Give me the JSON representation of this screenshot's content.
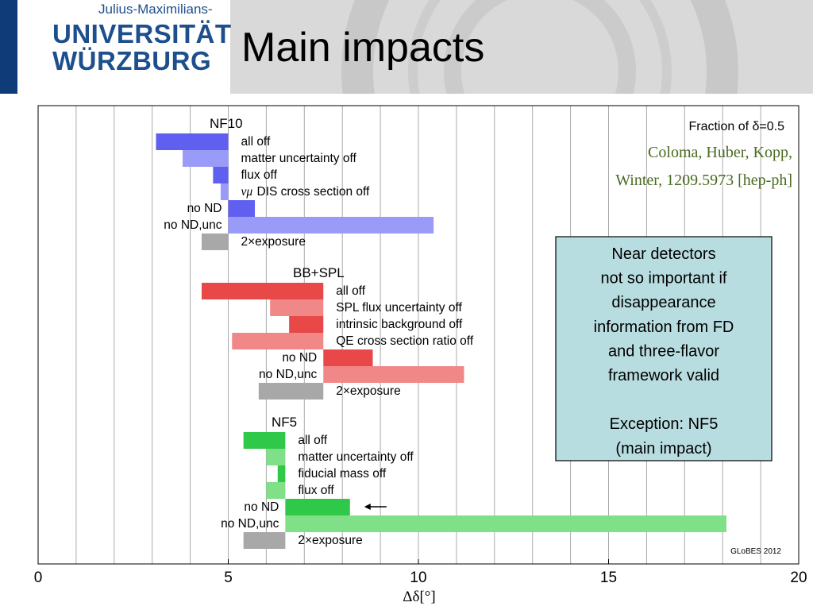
{
  "header": {
    "logo_top": "Julius-Maximilians-",
    "logo_line1": "UNIVERSITÄT",
    "logo_line2": "WÜRZBURG",
    "title": "Main impacts",
    "colors": {
      "brand": "#1d4f8c",
      "header_bg": "#d9d9d9"
    }
  },
  "chart_data": {
    "type": "bar",
    "orientation": "horizontal-range",
    "xlabel": "Δδ[°]",
    "xlim": [
      0,
      20
    ],
    "x_ticks": [
      "0",
      "5",
      "10",
      "15",
      "20"
    ],
    "grid": "vertical, every 1 unit",
    "top_right_label": "Fraction of δ=0.5",
    "citation": [
      "Coloma, Huber, Kopp,",
      "Winter, 1209.5973 [hep-ph]"
    ],
    "watermark": "GLoBES 2012",
    "groups": [
      {
        "name": "NF10",
        "color_dark": "#6060f0",
        "color_light": "#9a9af8",
        "bars": [
          {
            "label": "all off",
            "start": 3.1,
            "end": 5.0,
            "shade": "dark",
            "label_side": "right"
          },
          {
            "label": "matter uncertainty off",
            "start": 3.8,
            "end": 5.0,
            "shade": "light",
            "label_side": "right"
          },
          {
            "label": "flux off",
            "start": 4.6,
            "end": 5.0,
            "shade": "dark",
            "label_side": "right"
          },
          {
            "label": "DIS cross section off",
            "label_prefix": "νμ",
            "start": 4.8,
            "end": 5.0,
            "shade": "light",
            "label_side": "right"
          },
          {
            "label": "no ND",
            "start": 5.0,
            "end": 5.7,
            "shade": "dark",
            "label_side": "left"
          },
          {
            "label": "no ND,unc",
            "start": 5.0,
            "end": 10.4,
            "shade": "light",
            "label_side": "left"
          },
          {
            "label": "2×exposure",
            "start": 4.3,
            "end": 5.0,
            "shade": "gray",
            "label_side": "right"
          }
        ]
      },
      {
        "name": "BB+SPL",
        "color_dark": "#e84848",
        "color_light": "#f08888",
        "bars": [
          {
            "label": "all off",
            "start": 4.3,
            "end": 7.5,
            "shade": "dark",
            "label_side": "right"
          },
          {
            "label": "SPL flux uncertainty off",
            "start": 6.1,
            "end": 7.5,
            "shade": "light",
            "label_side": "right"
          },
          {
            "label": "intrinsic background off",
            "start": 6.6,
            "end": 7.5,
            "shade": "dark",
            "label_side": "right"
          },
          {
            "label": "QE cross section ratio off",
            "start": 5.1,
            "end": 7.5,
            "shade": "light",
            "label_side": "right"
          },
          {
            "label": "no ND",
            "start": 7.5,
            "end": 8.8,
            "shade": "dark",
            "label_side": "left"
          },
          {
            "label": "no ND,unc",
            "start": 7.5,
            "end": 11.2,
            "shade": "light",
            "label_side": "left"
          },
          {
            "label": "2×exposure",
            "start": 5.8,
            "end": 7.5,
            "shade": "gray",
            "label_side": "right"
          }
        ]
      },
      {
        "name": "NF5",
        "color_dark": "#30c848",
        "color_light": "#80e088",
        "bars": [
          {
            "label": "all off",
            "start": 5.4,
            "end": 6.5,
            "shade": "dark",
            "label_side": "right"
          },
          {
            "label": "matter uncertainty off",
            "start": 6.0,
            "end": 6.5,
            "shade": "light",
            "label_side": "right"
          },
          {
            "label": "fiducial mass off",
            "start": 6.3,
            "end": 6.5,
            "shade": "dark",
            "label_side": "right"
          },
          {
            "label": "flux off",
            "start": 6.0,
            "end": 6.5,
            "shade": "light",
            "label_side": "right"
          },
          {
            "label": "no ND",
            "start": 6.5,
            "end": 8.2,
            "shade": "dark",
            "label_side": "left",
            "arrow": true
          },
          {
            "label": "no ND,unc",
            "start": 6.5,
            "end": 18.1,
            "shade": "light",
            "label_side": "left"
          },
          {
            "label": "2×exposure",
            "start": 5.4,
            "end": 6.5,
            "shade": "gray",
            "label_side": "right"
          }
        ]
      }
    ]
  },
  "callout": {
    "lines": [
      "Near detectors",
      "not so important if",
      "disappearance",
      "information from FD",
      "and three-flavor",
      "framework valid",
      "",
      "Exception: NF5",
      "(main impact)"
    ]
  }
}
